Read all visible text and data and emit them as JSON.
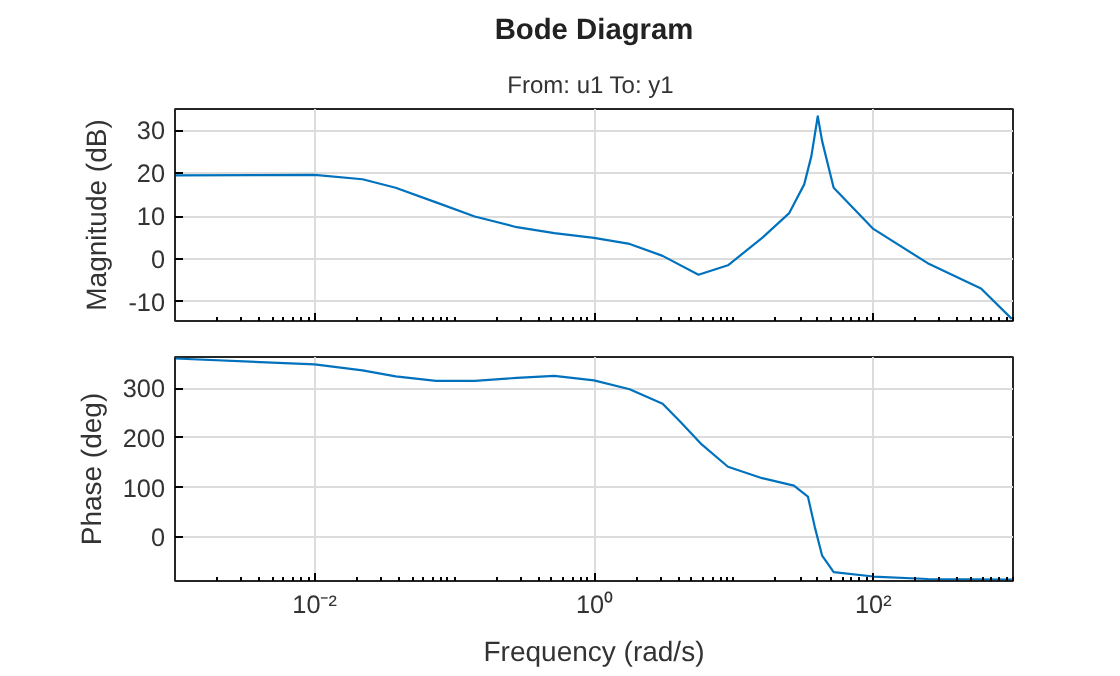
{
  "chart_data": [
    {
      "type": "line",
      "title": "Bode Diagram",
      "subtitle": "From: u1  To: y1",
      "ylabel": "Magnitude (dB)",
      "tick_labels": "y",
      "grid": true,
      "log": "x",
      "xlim": [
        0.001,
        1000
      ],
      "xticks": [
        {
          "value": 0.01,
          "label": null
        },
        {
          "value": 1,
          "label": null
        },
        {
          "value": 100,
          "label": null
        }
      ],
      "ylim": [
        -14.5,
        35
      ],
      "yticks": [
        -10,
        0,
        10,
        20,
        30
      ],
      "series": [
        {
          "color": "#0072bd",
          "x": [
            0.001,
            0.01,
            0.022,
            0.038,
            0.074,
            0.14,
            0.28,
            0.52,
            1,
            1.8,
            3.1,
            5.6,
            9.1,
            16,
            25,
            32,
            36,
            40,
            43,
            52,
            100,
            245,
            590,
            980
          ],
          "values": [
            19.5,
            19.6,
            18.6,
            16.6,
            13.2,
            9.9,
            7.4,
            6.0,
            4.9,
            3.5,
            0.7,
            -3.7,
            -1.5,
            4.9,
            10.7,
            17.4,
            24,
            33.3,
            27.5,
            16.6,
            7.0,
            -1.0,
            -6.9,
            -14
          ]
        }
      ]
    },
    {
      "type": "line",
      "xlabel": "Frequency (rad/s)",
      "ylabel": "Phase (deg)",
      "grid": true,
      "log": "x",
      "xlim": [
        0.001,
        1000
      ],
      "xticks": [
        {
          "value": 0.01,
          "label": "10⁻²"
        },
        {
          "value": 1,
          "label": "10⁰"
        },
        {
          "value": 100,
          "label": "10²"
        }
      ],
      "ylim": [
        -88,
        363
      ],
      "yticks": [
        0,
        100,
        200,
        300
      ],
      "series": [
        {
          "color": "#0072bd",
          "x": [
            0.001,
            0.01,
            0.022,
            0.038,
            0.074,
            0.14,
            0.28,
            0.52,
            1,
            1.8,
            3.1,
            4.2,
            5.9,
            9.1,
            16,
            27,
            34,
            38,
            43,
            52,
            100,
            245,
            980
          ],
          "values": [
            360,
            348,
            336,
            324,
            315,
            315,
            321,
            325,
            316,
            298,
            269,
            231,
            187,
            142,
            119,
            104,
            82,
            22,
            -37,
            -70,
            -79,
            -84,
            -85
          ]
        }
      ]
    }
  ]
}
